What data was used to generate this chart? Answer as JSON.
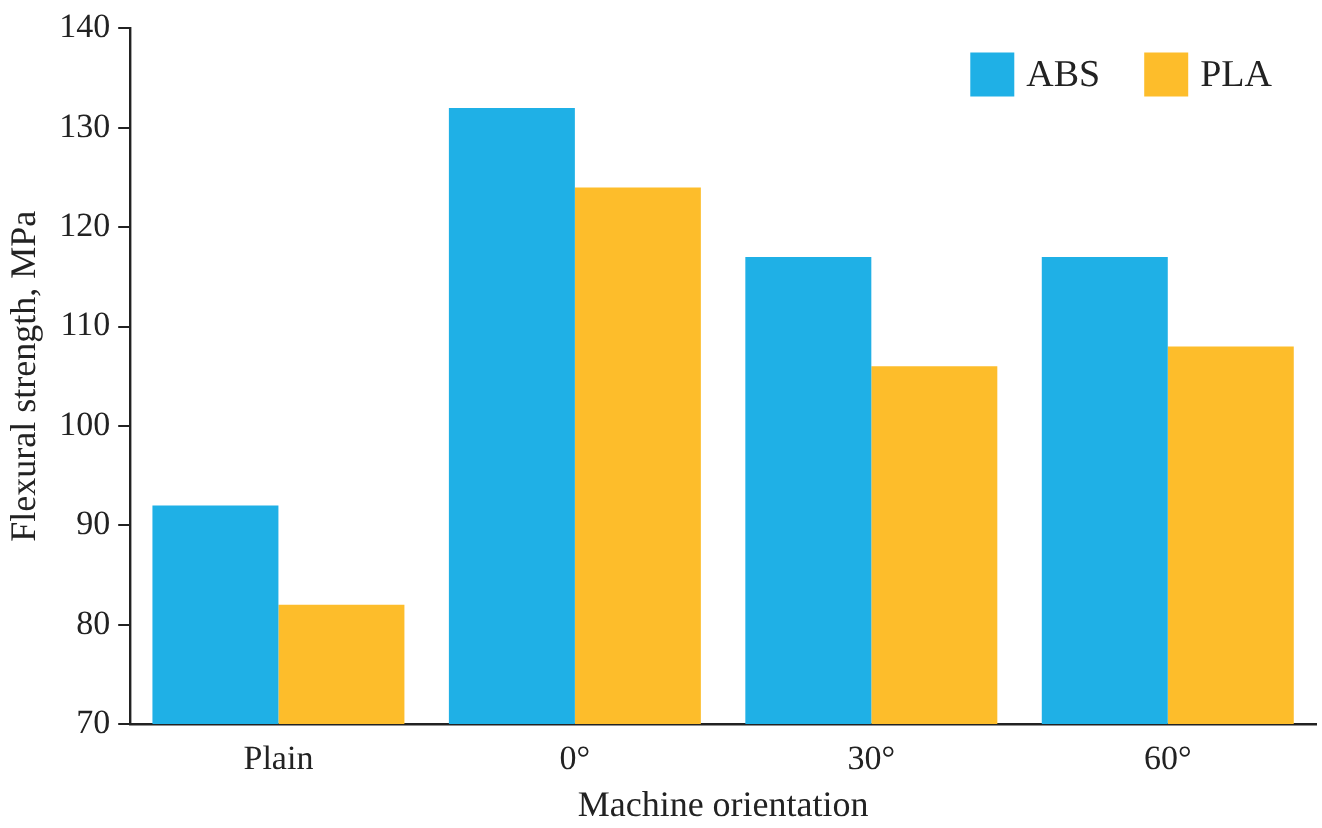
{
  "chart_data": {
    "type": "bar",
    "xlabel": "Machine orientation",
    "ylabel": "Flexural strength, MPa",
    "categories": [
      "Plain",
      "0°",
      "30°",
      "60°"
    ],
    "series": [
      {
        "name": "ABS",
        "color": "#1fb0e6",
        "values": [
          92,
          132,
          117,
          117
        ]
      },
      {
        "name": "PLA",
        "color": "#fdbd2b",
        "values": [
          82,
          124,
          106,
          108
        ]
      }
    ],
    "ylim": [
      70,
      140
    ],
    "yticks": [
      70,
      80,
      90,
      100,
      110,
      120,
      130,
      140
    ],
    "grid": false,
    "legend": "top right"
  }
}
